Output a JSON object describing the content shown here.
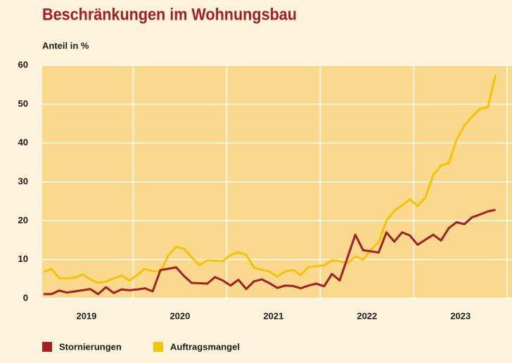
{
  "chart_data": {
    "type": "line",
    "title": "Beschränkungen im Wohnungsbau",
    "y_label": "Anteil in %",
    "categories": [
      null,
      null,
      null,
      null,
      null,
      null,
      "2019",
      null,
      null,
      null,
      null,
      null,
      null,
      null,
      null,
      null,
      null,
      null,
      "2020",
      null,
      null,
      null,
      null,
      null,
      null,
      null,
      null,
      null,
      null,
      null,
      "2021",
      null,
      null,
      null,
      null,
      null,
      null,
      null,
      null,
      null,
      null,
      null,
      "2022",
      null,
      null,
      null,
      null,
      null,
      null,
      null,
      null,
      null,
      null,
      null,
      "2023",
      null,
      null,
      null,
      null
    ],
    "series": [
      {
        "name": "Stornierungen",
        "color": "#a51e22",
        "values": [
          1.1,
          1.1,
          2.0,
          1.5,
          1.8,
          2.1,
          2.4,
          1.1,
          2.9,
          1.4,
          2.3,
          2.1,
          2.3,
          2.6,
          1.8,
          7.3,
          7.6,
          8.0,
          5.8,
          4.0,
          3.9,
          3.8,
          5.5,
          4.6,
          3.3,
          4.8,
          2.4,
          4.4,
          4.9,
          3.9,
          2.7,
          3.3,
          3.2,
          2.6,
          3.3,
          3.8,
          3.1,
          6.3,
          4.6,
          10.5,
          16.4,
          12.4,
          12.1,
          11.8,
          17.0,
          14.6,
          17.0,
          16.2,
          13.8,
          15.1,
          16.4,
          14.9,
          18.1,
          19.6,
          19.1,
          20.9,
          21.6,
          22.4,
          22.8
        ]
      },
      {
        "name": "Auftragsmangel",
        "color": "#f5c400",
        "values": [
          6.8,
          7.6,
          5.2,
          5.2,
          5.3,
          6.2,
          4.9,
          4.0,
          4.3,
          5.1,
          5.9,
          4.6,
          6.0,
          7.6,
          7.0,
          7.0,
          11.0,
          13.3,
          12.8,
          10.6,
          8.6,
          9.8,
          9.7,
          9.6,
          11.2,
          11.9,
          11.2,
          7.9,
          7.4,
          6.9,
          5.6,
          7.0,
          7.3,
          6.0,
          8.1,
          8.3,
          8.5,
          9.8,
          9.6,
          9.0,
          10.8,
          10.0,
          12.5,
          14.5,
          20.0,
          22.5,
          24.0,
          25.5,
          23.8,
          26.0,
          31.8,
          34.2,
          34.8,
          40.8,
          44.5,
          46.8,
          48.8,
          49.2,
          57.5
        ]
      }
    ],
    "ylim": [
      0,
      60
    ],
    "yticks": [
      0,
      10,
      20,
      30,
      40,
      50,
      60
    ],
    "grid": true
  }
}
